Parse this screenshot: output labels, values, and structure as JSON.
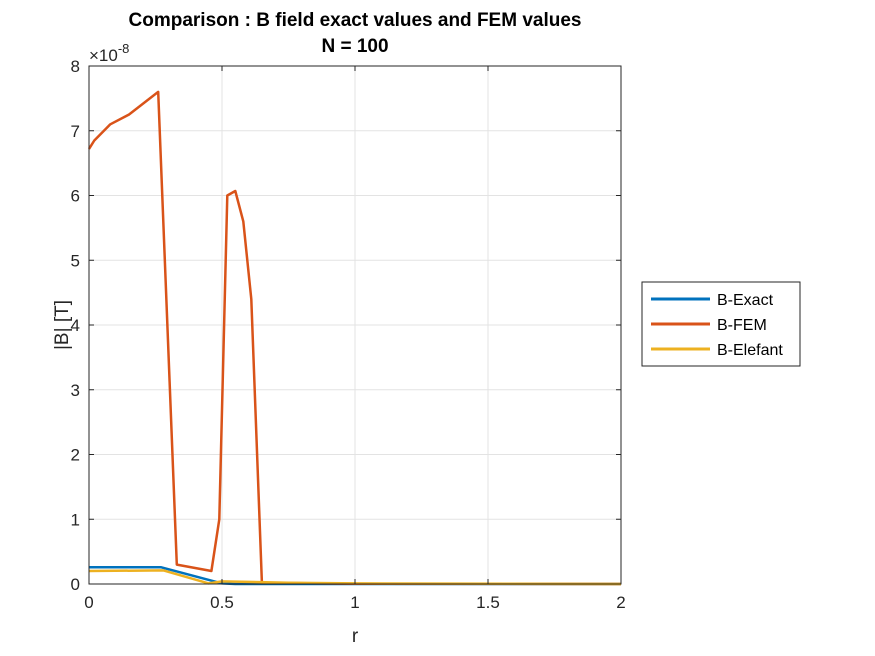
{
  "chart_data": {
    "type": "line",
    "title": "Comparison : B field exact values and FEM values",
    "subtitle": "N = 100",
    "xlabel": "r",
    "ylabel": "|B| [T]",
    "exponent_label": "×10",
    "exponent_power": "-8",
    "xlim": [
      0,
      2
    ],
    "ylim": [
      0,
      8e-08
    ],
    "x_ticks": [
      0,
      0.5,
      1,
      1.5,
      2
    ],
    "x_tick_labels": [
      "0",
      "0.5",
      "1",
      "1.5",
      "2"
    ],
    "y_ticks": [
      0,
      1e-08,
      2e-08,
      3e-08,
      4e-08,
      5e-08,
      6e-08,
      7e-08,
      8e-08
    ],
    "y_tick_labels": [
      "0",
      "1",
      "2",
      "3",
      "4",
      "5",
      "6",
      "7",
      "8"
    ],
    "grid": true,
    "legend_position": "outside-right",
    "series": [
      {
        "name": "B-Exact",
        "color": "#0072BD",
        "points": [
          [
            0,
            2.6e-09
          ],
          [
            0.27,
            2.6e-09
          ],
          [
            0.5,
            1e-10
          ],
          [
            0.55,
            0
          ],
          [
            2,
            0
          ]
        ]
      },
      {
        "name": "B-FEM",
        "color": "#D95319",
        "points": [
          [
            0,
            6.72e-08
          ],
          [
            0.02,
            6.85e-08
          ],
          [
            0.08,
            7.1e-08
          ],
          [
            0.15,
            7.25e-08
          ],
          [
            0.26,
            7.6e-08
          ],
          [
            0.33,
            3e-09
          ],
          [
            0.46,
            2e-09
          ],
          [
            0.49,
            1e-08
          ],
          [
            0.52,
            6e-08
          ],
          [
            0.55,
            6.07e-08
          ],
          [
            0.58,
            5.6e-08
          ],
          [
            0.61,
            4.4e-08
          ],
          [
            0.65,
            2e-10
          ],
          [
            1.0,
            5e-11
          ],
          [
            2,
            0
          ]
        ]
      },
      {
        "name": "B-Elefant",
        "color": "#EDB120",
        "points": [
          [
            0,
            2e-09
          ],
          [
            0.28,
            2.1e-09
          ],
          [
            0.45,
            1e-10
          ],
          [
            0.5,
            4e-10
          ],
          [
            0.75,
            2e-10
          ],
          [
            1.0,
            1e-10
          ],
          [
            2,
            0
          ]
        ]
      }
    ]
  }
}
